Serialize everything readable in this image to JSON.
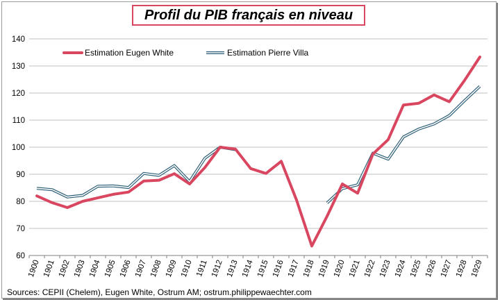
{
  "chart_data": {
    "type": "line",
    "title": "Profil du PIB français en niveau",
    "source": "Sources: CEPII (Chelem), Eugen White, Ostrum AM;  ostrum.philippewaechter.com",
    "categories": [
      "1900",
      "1901",
      "1902",
      "1903",
      "1904",
      "1905",
      "1906",
      "1907",
      "1908",
      "1909",
      "1910",
      "1911",
      "1912",
      "1913",
      "1914",
      "1915",
      "1916",
      "1917",
      "1918",
      "1919",
      "1920",
      "1921",
      "1922",
      "1923",
      "1924",
      "1925",
      "1926",
      "1927",
      "1928",
      "1929"
    ],
    "ylim": [
      60,
      140
    ],
    "yticks": [
      60,
      70,
      80,
      90,
      100,
      110,
      120,
      130,
      140
    ],
    "grid": true,
    "legend": "top-left",
    "series": [
      {
        "name": "Estimation Eugen White",
        "color": "#d94660",
        "values": [
          82,
          79.5,
          77.7,
          80,
          81.3,
          82.6,
          83.4,
          87.5,
          87.8,
          90.2,
          86.4,
          92.5,
          100,
          99.3,
          92.1,
          90.3,
          94.8,
          80.5,
          63.5,
          74.5,
          86.4,
          83,
          97.5,
          102.8,
          115.6,
          116.2,
          119.3,
          116.8,
          124.7,
          133.3
        ]
      },
      {
        "name": "Estimation Pierre Villa",
        "color": "#2e5f78",
        "values": [
          84.8,
          84.3,
          81.6,
          82.2,
          85.6,
          85.7,
          85.1,
          90.3,
          89.6,
          93.2,
          87.3,
          95.9,
          100,
          99.1,
          null,
          null,
          null,
          null,
          null,
          79.4,
          84.7,
          86.1,
          97.8,
          95.6,
          103.8,
          106.7,
          108.6,
          111.7,
          117.2,
          122.5
        ]
      }
    ]
  }
}
